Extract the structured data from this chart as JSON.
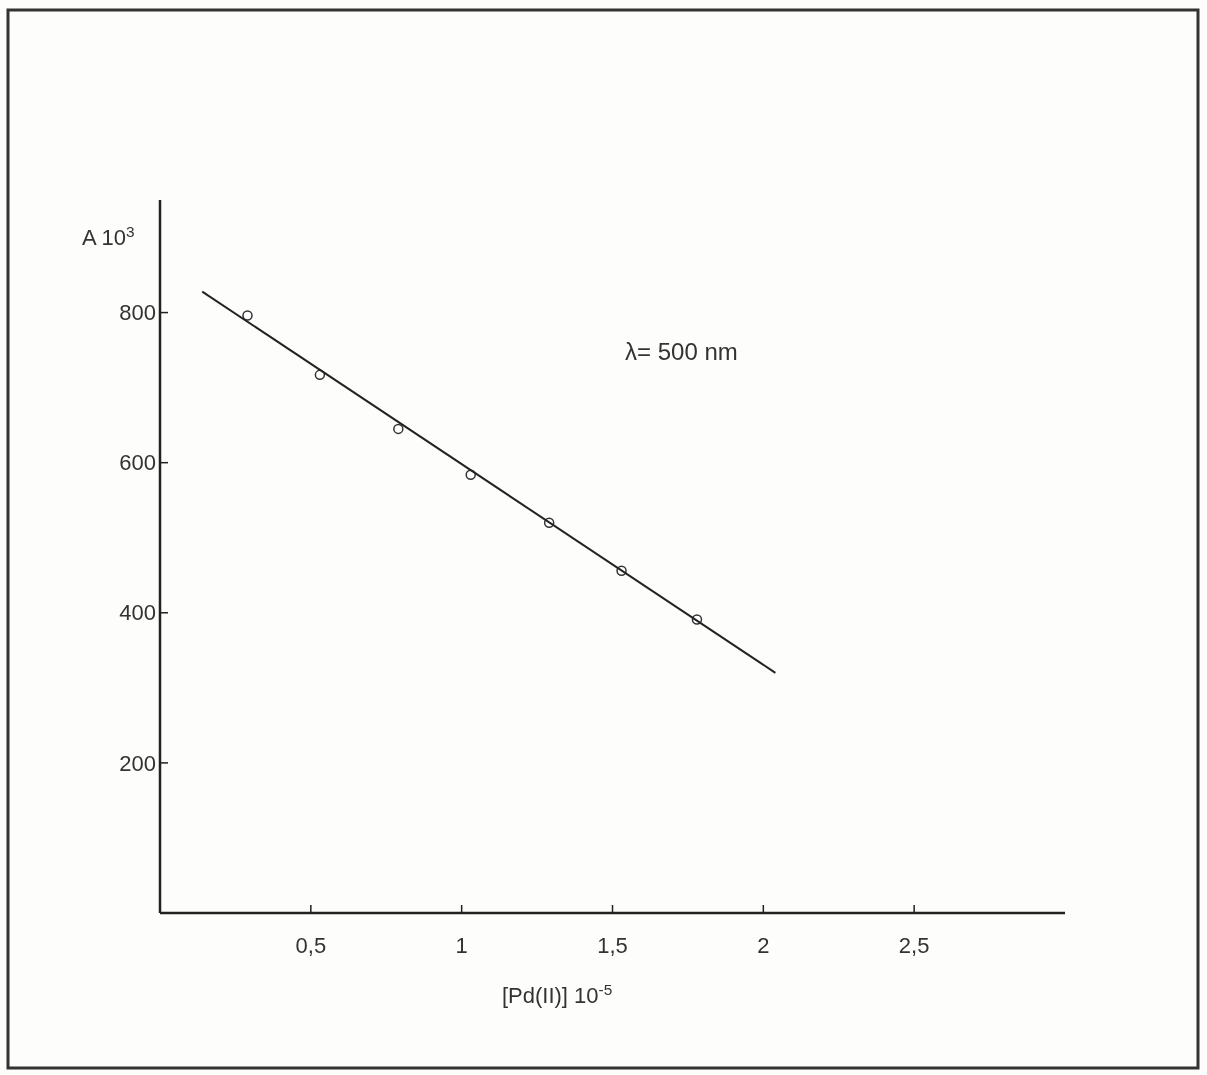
{
  "chart_data": {
    "type": "scatter",
    "xlabel": "[Pd(II)] 10$^{-5}$",
    "ylabel": "A 10$^{3}$",
    "annotations": [
      "λ= 500 nm"
    ],
    "xlim": [
      0,
      3
    ],
    "ylim": [
      0,
      950
    ],
    "xticks": [
      {
        "value": 0.5,
        "label": "0,5"
      },
      1,
      {
        "value": 1.5,
        "label": "1,5"
      },
      2,
      {
        "value": 2.5,
        "label": "2,5"
      }
    ],
    "yticks": [
      200,
      400,
      600,
      800
    ],
    "grid": false,
    "series": [
      {
        "color": "#333333",
        "marker": "circle",
        "x": [
          0.29,
          0.53,
          0.79,
          1.03,
          1.29,
          1.53,
          1.78
        ],
        "values": [
          796,
          717,
          645,
          584,
          520,
          456,
          391
        ]
      },
      {
        "type": "line",
        "color": "#222222",
        "marker": "none",
        "line_style": "solid",
        "x": [
          0.14,
          2.04
        ],
        "values": [
          828,
          320
        ]
      }
    ]
  }
}
